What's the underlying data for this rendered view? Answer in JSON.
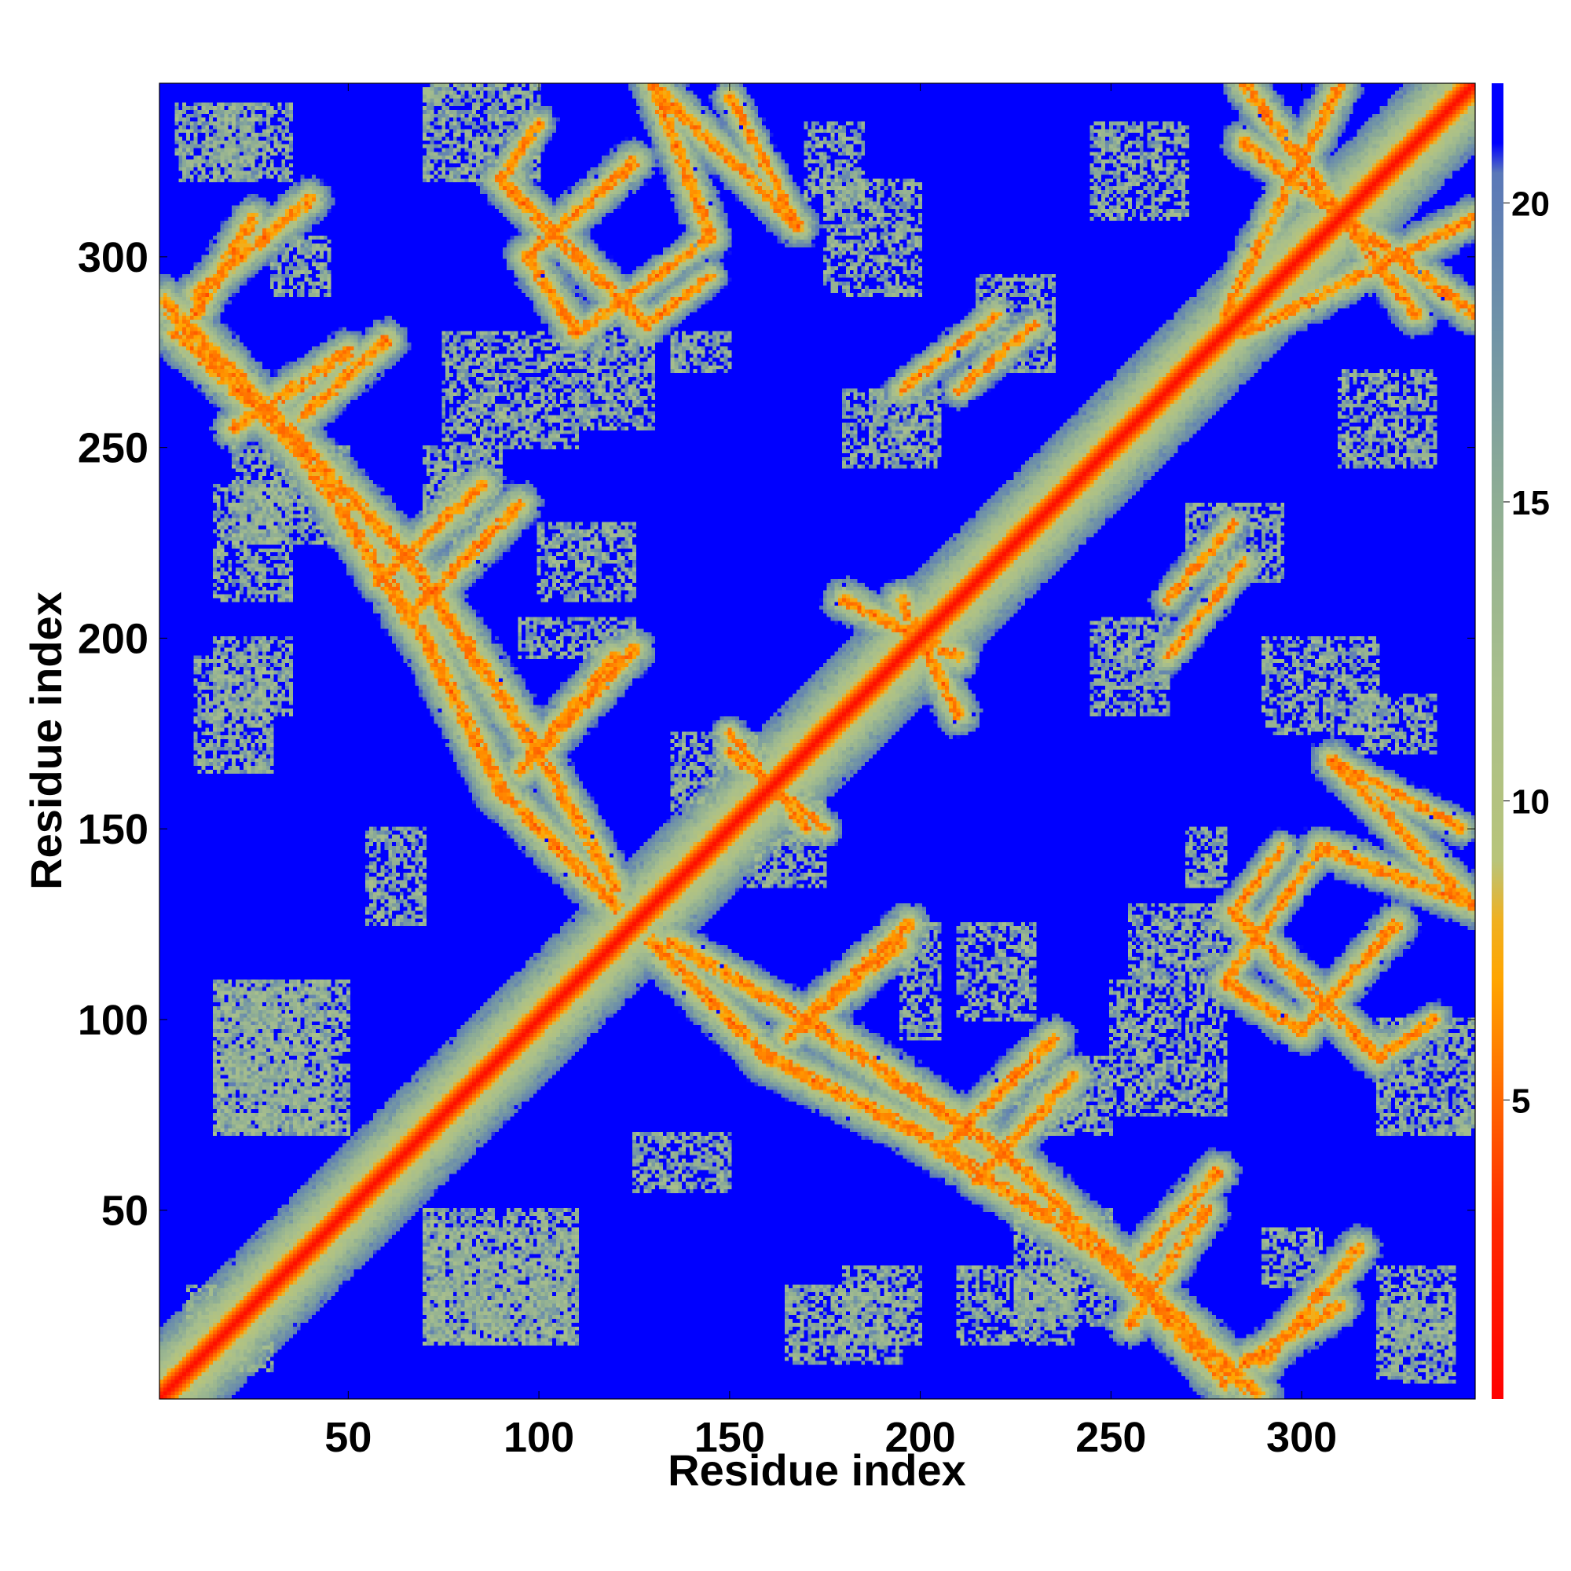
{
  "chart_data": {
    "type": "heatmap",
    "title": "",
    "xlabel": "Residue index",
    "ylabel": "Residue index",
    "n_residues": 345,
    "xlim": [
      1,
      345
    ],
    "ylim": [
      1,
      345
    ],
    "x_ticks": [
      50,
      100,
      150,
      200,
      250,
      300
    ],
    "y_ticks": [
      50,
      100,
      150,
      200,
      250,
      300
    ],
    "x_tick_labels": [
      "50",
      "100",
      "150",
      "200",
      "250",
      "300"
    ],
    "y_tick_labels": [
      "50",
      "100",
      "150",
      "200",
      "250",
      "300"
    ],
    "colorbar": {
      "ticks": [
        5,
        10,
        15,
        20
      ],
      "tick_labels": [
        "5",
        "10",
        "15",
        "20"
      ],
      "range": [
        0,
        22
      ],
      "stops": [
        {
          "value": 0,
          "color": "#ff0000"
        },
        {
          "value": 3,
          "color": "#ff2a00"
        },
        {
          "value": 5,
          "color": "#ff6600"
        },
        {
          "value": 7,
          "color": "#ffa500"
        },
        {
          "value": 8,
          "color": "#f0b020"
        },
        {
          "value": 9,
          "color": "#b8c47a"
        },
        {
          "value": 12,
          "color": "#a8bf8c"
        },
        {
          "value": 15,
          "color": "#8fae94"
        },
        {
          "value": 18,
          "color": "#6f92a8"
        },
        {
          "value": 20.5,
          "color": "#5a78b8"
        },
        {
          "value": 21,
          "color": "#0000ff"
        },
        {
          "value": 22,
          "color": "#0000ff"
        }
      ]
    },
    "background_value": 22,
    "contact_bands": [
      {
        "a1": 1,
        "b1": 1,
        "a2": 345,
        "b2": 345,
        "width": 11,
        "core": 1.5
      },
      {
        "a1": 2,
        "b1": 288,
        "a2": 65,
        "b2": 222,
        "width": 6
      },
      {
        "a1": 65,
        "b1": 222,
        "a2": 100,
        "b2": 170,
        "width": 6
      },
      {
        "a1": 100,
        "b1": 170,
        "a2": 120,
        "b2": 135,
        "width": 5
      },
      {
        "a1": 10,
        "b1": 290,
        "a2": 40,
        "b2": 315,
        "width": 5
      },
      {
        "a1": 38,
        "b1": 258,
        "a2": 60,
        "b2": 278,
        "width": 5
      },
      {
        "a1": 65,
        "b1": 205,
        "a2": 95,
        "b2": 235,
        "width": 5
      },
      {
        "a1": 100,
        "b1": 170,
        "a2": 125,
        "b2": 197,
        "width": 5
      },
      {
        "a1": 130,
        "b1": 345,
        "a2": 168,
        "b2": 308,
        "width": 5
      },
      {
        "a1": 90,
        "b1": 320,
        "a2": 128,
        "b2": 282,
        "width": 5
      },
      {
        "a1": 90,
        "b1": 320,
        "a2": 100,
        "b2": 335,
        "width": 4
      },
      {
        "a1": 168,
        "b1": 308,
        "a2": 150,
        "b2": 342,
        "width": 4
      },
      {
        "a1": 128,
        "b1": 282,
        "a2": 145,
        "b2": 295,
        "width": 4
      },
      {
        "a1": 130,
        "b1": 120,
        "a2": 160,
        "b2": 90,
        "width": 6
      },
      {
        "a1": 160,
        "b1": 90,
        "a2": 200,
        "b2": 70,
        "width": 6
      },
      {
        "a1": 200,
        "b1": 70,
        "a2": 250,
        "b2": 37,
        "width": 6
      },
      {
        "a1": 250,
        "b1": 37,
        "a2": 280,
        "b2": 5,
        "width": 6
      },
      {
        "a1": 165,
        "b1": 95,
        "a2": 195,
        "b2": 120,
        "width": 5
      },
      {
        "a1": 215,
        "b1": 58,
        "a2": 240,
        "b2": 85,
        "width": 5
      },
      {
        "a1": 255,
        "b1": 20,
        "a2": 275,
        "b2": 50,
        "width": 5
      },
      {
        "a1": 285,
        "b1": 10,
        "a2": 310,
        "b2": 25,
        "width": 5
      },
      {
        "a1": 280,
        "b1": 110,
        "a2": 300,
        "b2": 97,
        "width": 5
      },
      {
        "a1": 300,
        "b1": 97,
        "a2": 325,
        "b2": 125,
        "width": 5
      },
      {
        "a1": 280,
        "b1": 110,
        "a2": 305,
        "b2": 145,
        "width": 4
      },
      {
        "a1": 305,
        "b1": 145,
        "a2": 345,
        "b2": 130,
        "width": 5
      },
      {
        "a1": 280,
        "b1": 285,
        "a2": 310,
        "b2": 345,
        "width": 5
      },
      {
        "a1": 285,
        "b1": 330,
        "a2": 345,
        "b2": 285,
        "width": 5
      },
      {
        "a1": 265,
        "b1": 210,
        "a2": 282,
        "b2": 230,
        "width": 4
      },
      {
        "a1": 195,
        "b1": 265,
        "a2": 220,
        "b2": 285,
        "width": 4
      },
      {
        "a1": 180,
        "b1": 210,
        "a2": 210,
        "b2": 195,
        "width": 5
      },
      {
        "a1": 150,
        "b1": 170,
        "a2": 175,
        "b2": 150,
        "width": 4
      }
    ],
    "noise_patches": [
      {
        "x": [
          8,
          25
        ],
        "y": [
          8,
          30
        ]
      },
      {
        "x": [
          15,
          45
        ],
        "y": [
          70,
          110
        ]
      },
      {
        "x": [
          70,
          110
        ],
        "y": [
          15,
          50
        ]
      },
      {
        "x": [
          10,
          30
        ],
        "y": [
          165,
          195
        ]
      },
      {
        "x": [
          15,
          35
        ],
        "y": [
          210,
          240
        ]
      },
      {
        "x": [
          5,
          25
        ],
        "y": [
          320,
          340
        ]
      },
      {
        "x": [
          75,
          110
        ],
        "y": [
          250,
          280
        ]
      },
      {
        "x": [
          110,
          130
        ],
        "y": [
          255,
          285
        ]
      },
      {
        "x": [
          135,
          150
        ],
        "y": [
          270,
          280
        ]
      },
      {
        "x": [
          170,
          185
        ],
        "y": [
          315,
          335
        ]
      },
      {
        "x": [
          245,
          270
        ],
        "y": [
          310,
          335
        ]
      },
      {
        "x": [
          245,
          265
        ],
        "y": [
          180,
          205
        ]
      },
      {
        "x": [
          290,
          320
        ],
        "y": [
          175,
          200
        ]
      },
      {
        "x": [
          270,
          295
        ],
        "y": [
          215,
          235
        ]
      },
      {
        "x": [
          225,
          250
        ],
        "y": [
          70,
          90
        ]
      },
      {
        "x": [
          180,
          200
        ],
        "y": [
          15,
          35
        ]
      },
      {
        "x": [
          225,
          250
        ],
        "y": [
          20,
          50
        ]
      },
      {
        "x": [
          320,
          340
        ],
        "y": [
          15,
          35
        ]
      },
      {
        "x": [
          290,
          305
        ],
        "y": [
          30,
          45
        ]
      },
      {
        "x": [
          210,
          230
        ],
        "y": [
          100,
          125
        ]
      },
      {
        "x": [
          155,
          175
        ],
        "y": [
          135,
          160
        ]
      },
      {
        "x": [
          320,
          345
        ],
        "y": [
          70,
          100
        ]
      },
      {
        "x": [
          95,
          125
        ],
        "y": [
          195,
          205
        ]
      },
      {
        "x": [
          55,
          70
        ],
        "y": [
          125,
          150
        ]
      }
    ]
  }
}
